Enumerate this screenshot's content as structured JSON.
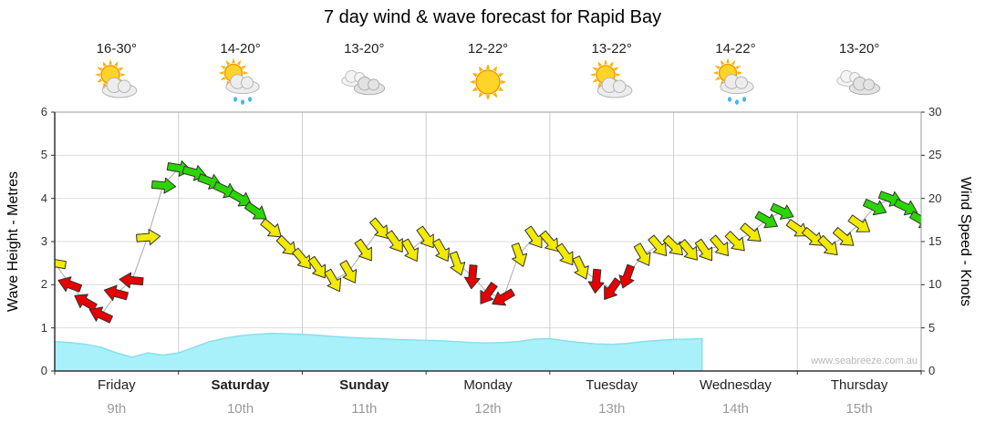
{
  "page": {
    "watermark": "www.seabreeze.com.au"
  },
  "days": [
    {
      "name": "Friday",
      "date": "9th",
      "temp": "16-30°",
      "icon": "sun-cloud",
      "bold": false
    },
    {
      "name": "Saturday",
      "date": "10th",
      "temp": "14-20°",
      "icon": "sun-cloud-rain",
      "bold": true
    },
    {
      "name": "Sunday",
      "date": "11th",
      "temp": "13-20°",
      "icon": "cloudy",
      "bold": true
    },
    {
      "name": "Monday",
      "date": "12th",
      "temp": "12-22°",
      "icon": "sunny",
      "bold": false
    },
    {
      "name": "Tuesday",
      "date": "13th",
      "temp": "13-22°",
      "icon": "sun-cloud",
      "bold": false
    },
    {
      "name": "Wednesday",
      "date": "14th",
      "temp": "14-22°",
      "icon": "sun-cloud-rain",
      "bold": false
    },
    {
      "name": "Thursday",
      "date": "15th",
      "temp": "13-20°",
      "icon": "cloudy",
      "bold": false
    }
  ],
  "chart_data": {
    "type": "line",
    "title": "7 day wind & wave forecast for Rapid Bay",
    "x_axis": {
      "days": [
        "Friday",
        "Saturday",
        "Sunday",
        "Monday",
        "Tuesday",
        "Wednesday",
        "Thursday"
      ],
      "range_hours": [
        0,
        168
      ]
    },
    "y_left": {
      "label": "Wave Height - Metres",
      "range": [
        0,
        6
      ],
      "ticks": [
        0,
        1,
        2,
        3,
        4,
        5,
        6
      ]
    },
    "y_right": {
      "label": "Wind Speed - Knots",
      "range": [
        0,
        30
      ],
      "ticks": [
        0,
        5,
        10,
        15,
        20,
        25,
        30
      ]
    },
    "grid": {
      "horizontal": true,
      "vertical_day_lines": true
    },
    "series": [
      {
        "name": "Wind Speed (knots)",
        "type": "wind-arrows",
        "hours": [
          0,
          3,
          6,
          9,
          12,
          15,
          18,
          21,
          24,
          27,
          30,
          33,
          36,
          39,
          42,
          45,
          48,
          51,
          54,
          57,
          60,
          63,
          66,
          69,
          72,
          75,
          78,
          81,
          84,
          87,
          90,
          93,
          96,
          99,
          102,
          105,
          108,
          111,
          114,
          117,
          120,
          123,
          126,
          129,
          132,
          135,
          138,
          141,
          144,
          147,
          150,
          153,
          156,
          159,
          162,
          165,
          168
        ],
        "knots": [
          12.5,
          10,
          8,
          6.5,
          9,
          10.5,
          15.5,
          21.5,
          23.5,
          23,
          22,
          21,
          20,
          18.5,
          16.5,
          14.5,
          13,
          12,
          10.5,
          11.5,
          14,
          16.5,
          15,
          14,
          15.5,
          14,
          12.5,
          11,
          9,
          8.5,
          13.5,
          15.5,
          15,
          13.5,
          12,
          10.5,
          9.5,
          11,
          13.5,
          14.5,
          14.5,
          14,
          14,
          14.5,
          15,
          16,
          17.5,
          18.5,
          16.5,
          15.5,
          14.5,
          15.5,
          17,
          19,
          20,
          19,
          17.5
        ],
        "dir_deg_cw_from_east": [
          190,
          200,
          210,
          205,
          195,
          185,
          355,
          5,
          10,
          15,
          20,
          25,
          30,
          35,
          40,
          45,
          50,
          55,
          60,
          60,
          55,
          50,
          55,
          60,
          55,
          60,
          70,
          95,
          125,
          150,
          70,
          55,
          50,
          55,
          65,
          95,
          125,
          110,
          60,
          50,
          45,
          50,
          55,
          50,
          45,
          40,
          30,
          25,
          35,
          40,
          45,
          40,
          35,
          25,
          20,
          25,
          30
        ],
        "strength_color": [
          "Y",
          "R",
          "R",
          "R",
          "R",
          "R",
          "Y",
          "G",
          "G",
          "G",
          "G",
          "G",
          "G",
          "G",
          "Y",
          "Y",
          "Y",
          "Y",
          "Y",
          "Y",
          "Y",
          "Y",
          "Y",
          "Y",
          "Y",
          "Y",
          "Y",
          "R",
          "R",
          "R",
          "Y",
          "Y",
          "Y",
          "Y",
          "Y",
          "R",
          "R",
          "R",
          "Y",
          "Y",
          "Y",
          "Y",
          "Y",
          "Y",
          "Y",
          "Y",
          "G",
          "G",
          "Y",
          "Y",
          "Y",
          "Y",
          "Y",
          "G",
          "G",
          "G",
          "G"
        ]
      },
      {
        "name": "Wave Height (m)",
        "type": "area",
        "hours": [
          0,
          3,
          6,
          9,
          12,
          15,
          18,
          21,
          24,
          27,
          30,
          33,
          36,
          39,
          42,
          45,
          48,
          51,
          54,
          57,
          60,
          63,
          66,
          69,
          72,
          75,
          78,
          81,
          84,
          87,
          90,
          93,
          96,
          99,
          102,
          105,
          108,
          111,
          114,
          117,
          120,
          123,
          125.5
        ],
        "metres": [
          0.68,
          0.66,
          0.62,
          0.55,
          0.42,
          0.32,
          0.42,
          0.37,
          0.42,
          0.55,
          0.68,
          0.76,
          0.82,
          0.85,
          0.87,
          0.86,
          0.85,
          0.83,
          0.8,
          0.78,
          0.76,
          0.75,
          0.73,
          0.72,
          0.71,
          0.7,
          0.68,
          0.66,
          0.65,
          0.66,
          0.68,
          0.74,
          0.75,
          0.7,
          0.66,
          0.63,
          0.62,
          0.64,
          0.68,
          0.71,
          0.73,
          0.74,
          0.75
        ]
      }
    ],
    "style": {
      "arrow_colors": {
        "R": "#e60000",
        "Y": "#f2ea00",
        "G": "#2bd600"
      },
      "arrow_strength_legend": {
        "R": "light",
        "Y": "moderate",
        "G": "fresh"
      },
      "wave_fill": "#a8f0fa",
      "wave_stroke": "#8adeee"
    }
  }
}
